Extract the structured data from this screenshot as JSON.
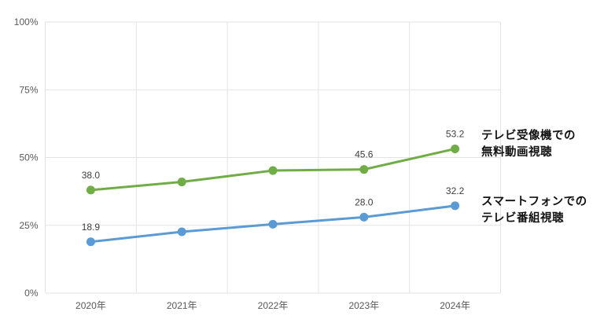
{
  "chart_data": {
    "type": "line",
    "title": "",
    "categories": [
      "2020年",
      "2021年",
      "2022年",
      "2023年",
      "2024年"
    ],
    "xlabel": "",
    "ylabel": "",
    "ylim": [
      0,
      100
    ],
    "grid": true,
    "legend_position": "right-of-last-point",
    "y_ticks": [
      {
        "value": 0,
        "label": "0%"
      },
      {
        "value": 25,
        "label": "25%"
      },
      {
        "value": 50,
        "label": "50%"
      },
      {
        "value": 75,
        "label": "75%"
      },
      {
        "value": 100,
        "label": "100%"
      }
    ],
    "series": [
      {
        "name": "テレビ受像機での無料動画視聴",
        "label_lines": [
          "テレビ受像機での",
          "無料動画視聴"
        ],
        "color": "#70ad47",
        "values": [
          38.0,
          41.0,
          45.2,
          45.6,
          53.2
        ],
        "point_labels": [
          "38.0",
          "",
          "",
          "45.6",
          "53.2"
        ]
      },
      {
        "name": "スマートフォンでのテレビ番組視聴",
        "label_lines": [
          "スマートフォンでの",
          "テレビ番組視聴"
        ],
        "color": "#5b9bd5",
        "values": [
          18.9,
          22.6,
          25.4,
          28.0,
          32.2
        ],
        "point_labels": [
          "18.9",
          "",
          "",
          "28.0",
          "32.2"
        ]
      }
    ],
    "colors": {
      "grid": "#e3e3e3",
      "axis_tick_label": "#595959",
      "data_label": "#3d3d3d",
      "series_label": "#111111",
      "background": "#ffffff"
    }
  }
}
